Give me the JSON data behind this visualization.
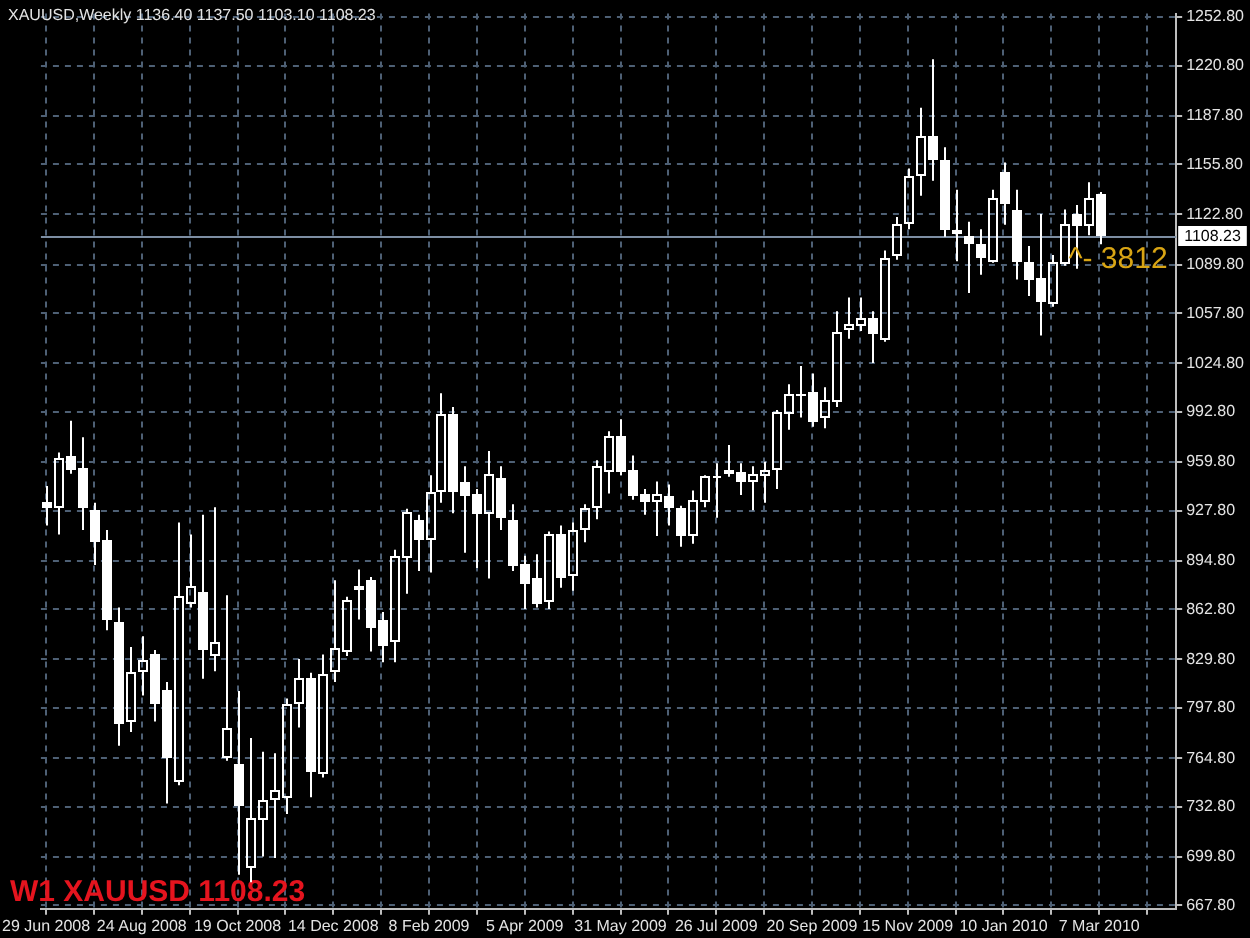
{
  "chart_data": {
    "type": "candlestick",
    "title": "XAUUSD,Weekly 1136.40 1137.50 1103.10 1108.23",
    "x": [
      "2008-06-29",
      "2008-07-06",
      "2008-07-13",
      "2008-07-20",
      "2008-07-27",
      "2008-08-03",
      "2008-08-10",
      "2008-08-17",
      "2008-08-24",
      "2008-08-31",
      "2008-09-07",
      "2008-09-14",
      "2008-09-21",
      "2008-09-28",
      "2008-10-05",
      "2008-10-12",
      "2008-10-19",
      "2008-10-26",
      "2008-11-02",
      "2008-11-09",
      "2008-11-16",
      "2008-11-23",
      "2008-11-30",
      "2008-12-07",
      "2008-12-14",
      "2008-12-21",
      "2008-12-28",
      "2009-01-04",
      "2009-01-11",
      "2009-01-18",
      "2009-01-25",
      "2009-02-01",
      "2009-02-08",
      "2009-02-15",
      "2009-02-22",
      "2009-03-01",
      "2009-03-08",
      "2009-03-15",
      "2009-03-22",
      "2009-03-29",
      "2009-04-05",
      "2009-04-12",
      "2009-04-19",
      "2009-04-26",
      "2009-05-03",
      "2009-05-10",
      "2009-05-17",
      "2009-05-24",
      "2009-05-31",
      "2009-06-07",
      "2009-06-14",
      "2009-06-21",
      "2009-06-28",
      "2009-07-05",
      "2009-07-12",
      "2009-07-19",
      "2009-07-26",
      "2009-08-02",
      "2009-08-09",
      "2009-08-16",
      "2009-08-23",
      "2009-08-30",
      "2009-09-06",
      "2009-09-13",
      "2009-09-20",
      "2009-09-27",
      "2009-10-04",
      "2009-10-11",
      "2009-10-18",
      "2009-10-25",
      "2009-11-01",
      "2009-11-08",
      "2009-11-15",
      "2009-11-22",
      "2009-11-29",
      "2009-12-06",
      "2009-12-13",
      "2009-12-20",
      "2009-12-27",
      "2010-01-03",
      "2010-01-10",
      "2010-01-17",
      "2010-01-24",
      "2010-01-31",
      "2010-02-07",
      "2010-02-14",
      "2010-02-21",
      "2010-02-28",
      "2010-03-07"
    ],
    "ohlc": [
      [
        933,
        944,
        918,
        929
      ],
      [
        930,
        966,
        912,
        963
      ],
      [
        964,
        987,
        952,
        954
      ],
      [
        956,
        976,
        915,
        929
      ],
      [
        928,
        933,
        892,
        907
      ],
      [
        909,
        915,
        849,
        856
      ],
      [
        855,
        864,
        773,
        787
      ],
      [
        789,
        838,
        782,
        821
      ],
      [
        822,
        845,
        806,
        830
      ],
      [
        833,
        836,
        789,
        801
      ],
      [
        809,
        815,
        735,
        765
      ],
      [
        749,
        920,
        747,
        872
      ],
      [
        866,
        912,
        864,
        878
      ],
      [
        874,
        925,
        817,
        836
      ],
      [
        832,
        930,
        822,
        841
      ],
      [
        765,
        872,
        763,
        784
      ],
      [
        761,
        809,
        688,
        733
      ],
      [
        692,
        778,
        683,
        725
      ],
      [
        724,
        769,
        700,
        737
      ],
      [
        737,
        768,
        699,
        744
      ],
      [
        738,
        804,
        728,
        800
      ],
      [
        801,
        830,
        785,
        817
      ],
      [
        818,
        821,
        739,
        756
      ],
      [
        754,
        833,
        752,
        820
      ],
      [
        822,
        882,
        815,
        837
      ],
      [
        835,
        871,
        832,
        869
      ],
      [
        878,
        889,
        856,
        875
      ],
      [
        882,
        884,
        835,
        851
      ],
      [
        856,
        861,
        828,
        838
      ],
      [
        841,
        902,
        828,
        898
      ],
      [
        896,
        929,
        873,
        927
      ],
      [
        922,
        925,
        888,
        909
      ],
      [
        909,
        951,
        887,
        940
      ],
      [
        940,
        1005,
        933,
        992
      ],
      [
        991,
        996,
        926,
        940
      ],
      [
        947,
        957,
        900,
        938
      ],
      [
        939,
        942,
        890,
        926
      ],
      [
        925,
        967,
        883,
        952
      ],
      [
        949,
        957,
        915,
        923
      ],
      [
        922,
        932,
        888,
        891
      ],
      [
        893,
        898,
        863,
        879
      ],
      [
        883,
        899,
        864,
        866
      ],
      [
        867,
        914,
        863,
        912
      ],
      [
        912,
        918,
        877,
        884
      ],
      [
        885,
        920,
        875,
        915
      ],
      [
        915,
        932,
        907,
        930
      ],
      [
        929,
        961,
        922,
        957
      ],
      [
        953,
        980,
        939,
        977
      ],
      [
        977,
        988,
        951,
        953
      ],
      [
        954,
        964,
        935,
        938
      ],
      [
        939,
        942,
        925,
        934
      ],
      [
        933,
        947,
        911,
        939
      ],
      [
        937,
        945,
        918,
        930
      ],
      [
        930,
        931,
        904,
        911
      ],
      [
        911,
        941,
        906,
        935
      ],
      [
        933,
        951,
        930,
        950
      ],
      [
        949,
        959,
        923,
        951
      ],
      [
        954,
        971,
        950,
        952
      ],
      [
        953,
        959,
        938,
        947
      ],
      [
        946,
        957,
        928,
        952
      ],
      [
        951,
        960,
        933,
        955
      ],
      [
        955,
        994,
        942,
        993
      ],
      [
        992,
        1011,
        981,
        1005
      ],
      [
        1004,
        1023,
        989,
        1003
      ],
      [
        1006,
        1018,
        983,
        986
      ],
      [
        989,
        1009,
        982,
        1000
      ],
      [
        999,
        1059,
        996,
        1046
      ],
      [
        1047,
        1068,
        1041,
        1050
      ],
      [
        1049,
        1068,
        1046,
        1054
      ],
      [
        1054,
        1059,
        1025,
        1044
      ],
      [
        1040,
        1099,
        1039,
        1094
      ],
      [
        1096,
        1121,
        1093,
        1117
      ],
      [
        1116,
        1153,
        1113,
        1148
      ],
      [
        1148,
        1193,
        1135,
        1175
      ],
      [
        1175,
        1225,
        1145,
        1158
      ],
      [
        1159,
        1167,
        1108,
        1113
      ],
      [
        1113,
        1139,
        1092,
        1110
      ],
      [
        1109,
        1118,
        1071,
        1103
      ],
      [
        1103,
        1113,
        1083,
        1094
      ],
      [
        1092,
        1139,
        1091,
        1134
      ],
      [
        1151,
        1157,
        1116,
        1129
      ],
      [
        1126,
        1139,
        1080,
        1091
      ],
      [
        1091,
        1102,
        1069,
        1079
      ],
      [
        1081,
        1123,
        1043,
        1065
      ],
      [
        1064,
        1096,
        1062,
        1091
      ],
      [
        1090,
        1126,
        1089,
        1116
      ],
      [
        1123,
        1129,
        1087,
        1115
      ],
      [
        1115,
        1144,
        1109,
        1133
      ],
      [
        1136.4,
        1137.5,
        1103.1,
        1108.23
      ]
    ],
    "color": "#ffffff",
    "xlim": [
      "2008-06-26",
      "2010-04-21"
    ],
    "xticks": [
      {
        "value": "2008-06-29",
        "label": "29 Jun 2008"
      },
      {
        "value": "2008-07-27",
        "label": null
      },
      {
        "value": "2008-08-24",
        "label": "24 Aug 2008"
      },
      {
        "value": "2008-09-21",
        "label": null
      },
      {
        "value": "2008-10-19",
        "label": "19 Oct 2008"
      },
      {
        "value": "2008-11-16",
        "label": null
      },
      {
        "value": "2008-12-14",
        "label": "14 Dec 2008"
      },
      {
        "value": "2009-01-11",
        "label": null
      },
      {
        "value": "2009-02-08",
        "label": "8 Feb 2009"
      },
      {
        "value": "2009-03-08",
        "label": null
      },
      {
        "value": "2009-04-05",
        "label": "5 Apr 2009"
      },
      {
        "value": "2009-05-03",
        "label": null
      },
      {
        "value": "2009-05-31",
        "label": "31 May 2009"
      },
      {
        "value": "2009-06-28",
        "label": null
      },
      {
        "value": "2009-07-26",
        "label": "26 Jul 2009"
      },
      {
        "value": "2009-08-23",
        "label": null
      },
      {
        "value": "2009-09-20",
        "label": "20 Sep 2009"
      },
      {
        "value": "2009-10-18",
        "label": null
      },
      {
        "value": "2009-11-15",
        "label": "15 Nov 2009"
      },
      {
        "value": "2009-12-13",
        "label": null
      },
      {
        "value": "2010-01-10",
        "label": "10 Jan 2010"
      },
      {
        "value": "2010-02-07",
        "label": null
      },
      {
        "value": "2010-03-07",
        "label": "7 Mar 2010"
      },
      {
        "value": "2010-04-04",
        "label": null
      }
    ],
    "ylim": [
      665.6,
      1255
    ],
    "yticks": [
      {
        "value": 667.8,
        "label": "667.80"
      },
      {
        "value": 699.8,
        "label": "699.80"
      },
      {
        "value": 732.8,
        "label": "732.80"
      },
      {
        "value": 764.8,
        "label": "764.80"
      },
      {
        "value": 797.8,
        "label": "797.80"
      },
      {
        "value": 829.8,
        "label": "829.80"
      },
      {
        "value": 862.8,
        "label": "862.80"
      },
      {
        "value": 894.8,
        "label": "894.80"
      },
      {
        "value": 927.8,
        "label": "927.80"
      },
      {
        "value": 959.8,
        "label": "959.80"
      },
      {
        "value": 992.8,
        "label": "992.80"
      },
      {
        "value": 1024.8,
        "label": "1024.80"
      },
      {
        "value": 1057.8,
        "label": "1057.80"
      },
      {
        "value": 1089.8,
        "label": "1089.80"
      },
      {
        "value": 1122.8,
        "label": "1122.80"
      },
      {
        "value": 1155.8,
        "label": "1155.80"
      },
      {
        "value": 1187.8,
        "label": "1187.80"
      },
      {
        "value": 1220.8,
        "label": "1220.80"
      },
      {
        "value": 1252.8,
        "label": "1252.80"
      }
    ],
    "grid": true,
    "ref_lines": [
      {
        "axis": "y",
        "value": 1108.23,
        "label": "1108.23",
        "color": "#7d8ea3"
      }
    ],
    "annotations": [
      "W1 XAUUSD 1108.23",
      {
        "text": "^- 3812",
        "x": "2010-02-17",
        "y": 1093
      }
    ]
  }
}
